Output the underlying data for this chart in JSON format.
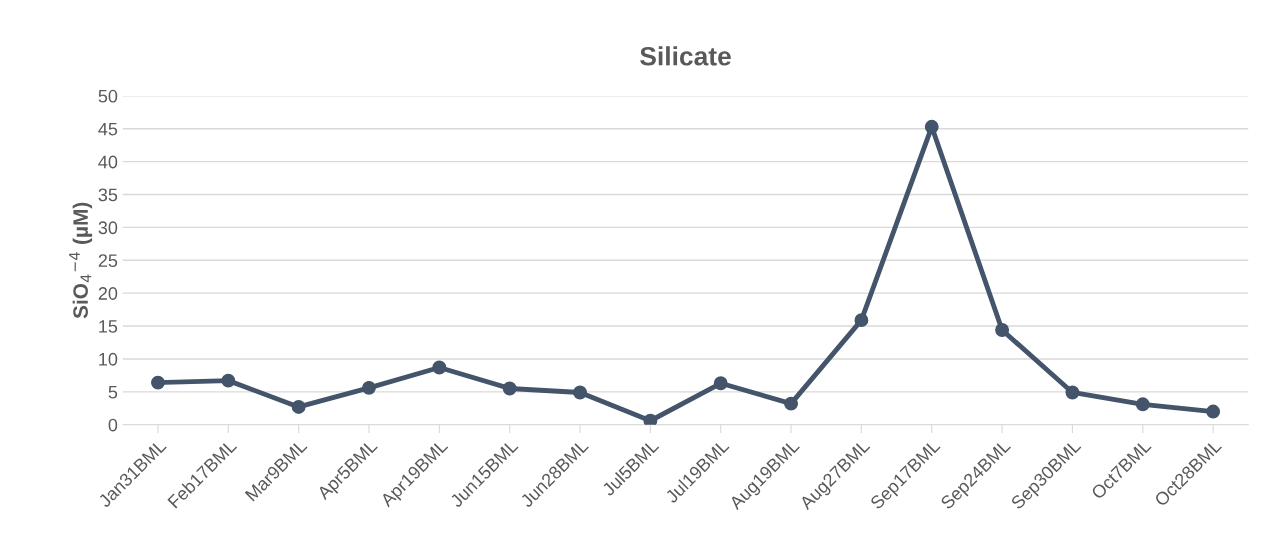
{
  "chart_data": {
    "type": "line",
    "title": "Silicate",
    "ylabel": "SiO$_{4}$$^{−4}$ (µM)",
    "categories": [
      "Jan31BML",
      "Feb17BML",
      "Mar9BML",
      "Apr5BML",
      "Apr19BML",
      "Jun15BML",
      "Jun28BML",
      "Jul5BML",
      "Jul19BML",
      "Aug19BML",
      "Aug27BML",
      "Sep17BML",
      "Sep24BML",
      "Sep30BML",
      "Oct7BML",
      "Oct28BML"
    ],
    "series": [
      {
        "color": "#44546a",
        "values": [
          6.4,
          6.7,
          2.7,
          5.6,
          8.7,
          5.5,
          4.9,
          0.6,
          6.3,
          3.2,
          15.9,
          45.3,
          14.4,
          4.9,
          3.1,
          2.0
        ]
      }
    ],
    "ylim": [
      0,
      50
    ],
    "yticks": [
      0,
      5,
      10,
      15,
      20,
      25,
      30,
      35,
      40,
      45,
      50
    ],
    "grid": "y",
    "marker": "circle",
    "line_style": "solid",
    "legend": false
  }
}
